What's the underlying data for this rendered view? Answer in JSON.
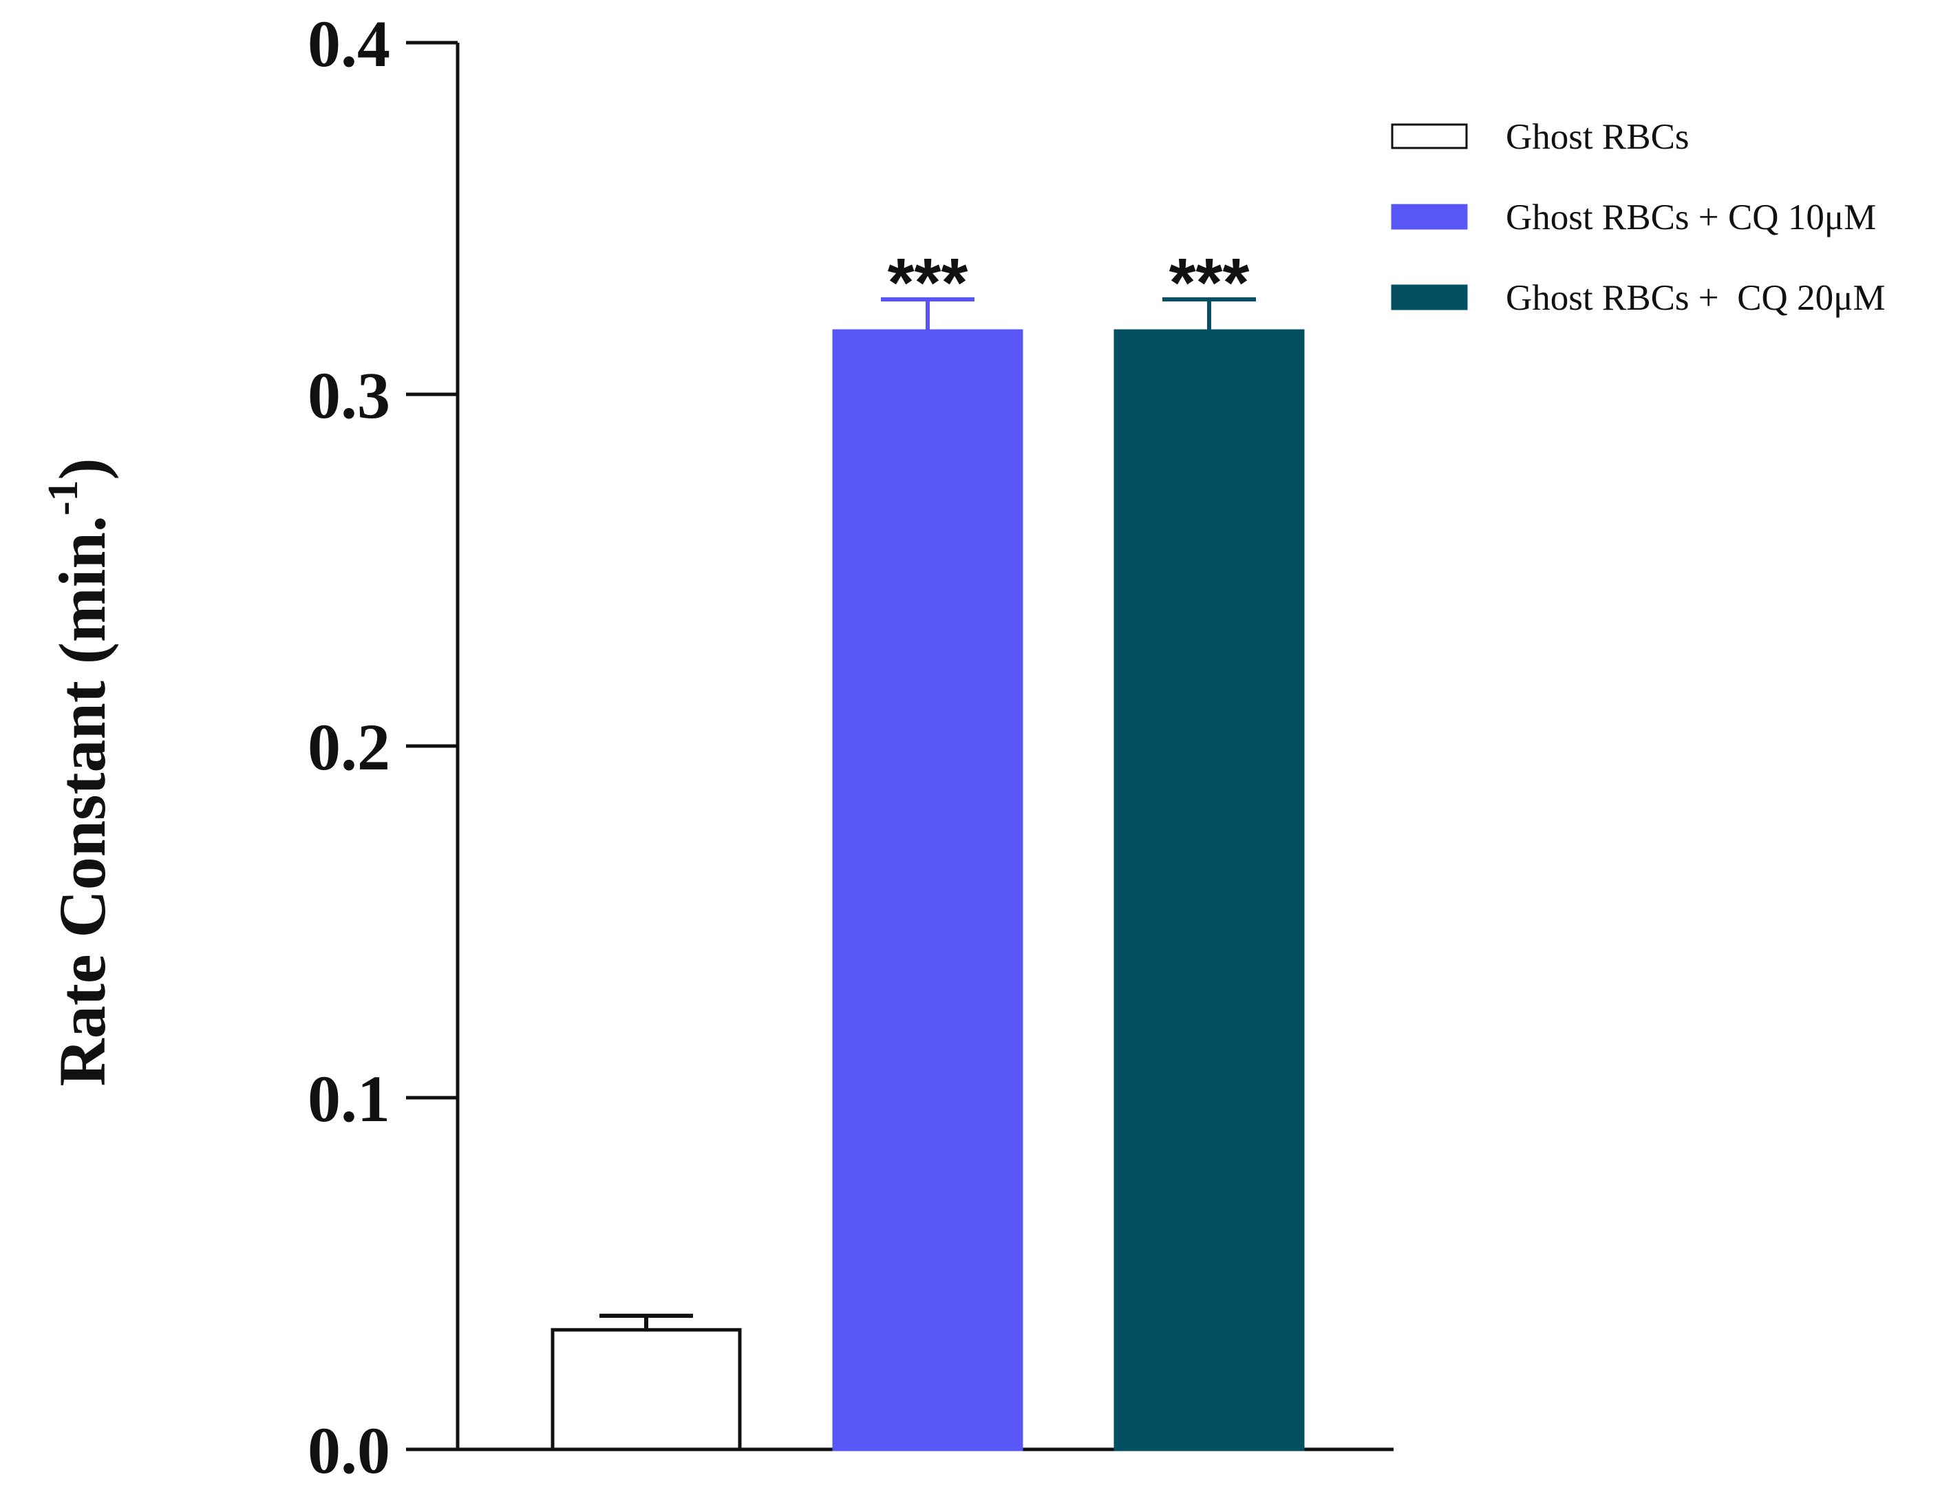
{
  "chart_data": {
    "type": "bar",
    "categories": [
      "Ghost RBCs",
      "Ghost RBCs + CQ 10μM",
      "Ghost RBCs +  CQ 20μM"
    ],
    "series": [
      {
        "name": "Ghost RBCs",
        "value": 0.034,
        "error": 0.004,
        "color": "#ffffff",
        "stroke": "#111111",
        "significance": ""
      },
      {
        "name": "Ghost RBCs + CQ 10μM",
        "value": 0.318,
        "error": 0.009,
        "color": "#5856f7",
        "stroke": "#5856f7",
        "significance": "***"
      },
      {
        "name": "Ghost RBCs +  CQ 20μM",
        "value": 0.318,
        "error": 0.009,
        "color": "#045062",
        "stroke": "#045062",
        "significance": "***"
      }
    ],
    "ylabel": "Rate Constant (min.",
    "ylabel_superscript": "-1",
    "ylabel_close": ")",
    "ylim": [
      0,
      0.4
    ],
    "yticks": [
      0.0,
      0.1,
      0.2,
      0.3,
      0.4
    ],
    "ytick_labels": [
      "0.0",
      "0.1",
      "0.2",
      "0.3",
      "0.4"
    ],
    "grid": false,
    "legend_position": "top-right"
  }
}
